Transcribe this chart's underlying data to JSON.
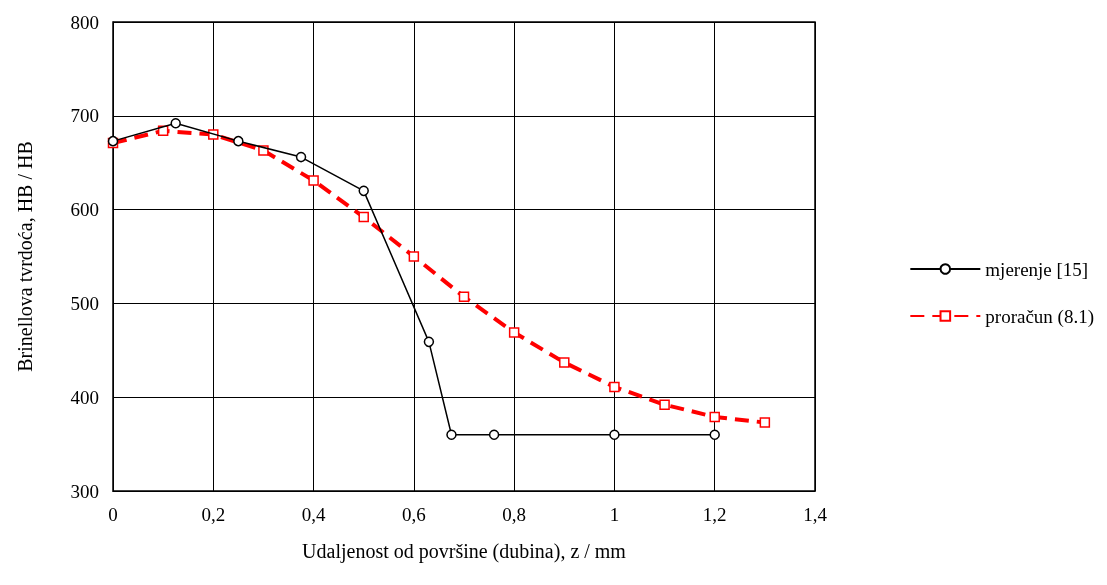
{
  "chart_data": {
    "type": "line",
    "xlabel": "Udaljenost od površine (dubina), z / mm",
    "ylabel": "Brinellova tvrdoća, HB / HB",
    "xlim": [
      0,
      1.4
    ],
    "xticks": [
      0,
      {
        "value": 0.2,
        "label": "0,2"
      },
      {
        "value": 0.4,
        "label": "0,4"
      },
      {
        "value": 0.6,
        "label": "0,6"
      },
      {
        "value": 0.8,
        "label": "0,8"
      },
      1,
      {
        "value": 1.2,
        "label": "1,2"
      },
      {
        "value": 1.4,
        "label": "1,4"
      }
    ],
    "ylim": [
      300,
      800
    ],
    "yticks": [
      300,
      400,
      500,
      600,
      700,
      800
    ],
    "grid": true,
    "legend": "right",
    "series": [
      {
        "name": "mjerenje [15]",
        "color": "#000000",
        "marker": "circle",
        "line_style": "solid",
        "x": [
          0,
          0.125,
          0.25,
          0.375,
          0.5,
          0.63,
          0.675,
          0.76,
          1.0,
          1.2
        ],
        "values": [
          673,
          692,
          673,
          656,
          620,
          459,
          360,
          360,
          360,
          360
        ]
      },
      {
        "name": "proračun (8.1)",
        "color": "#ff0000",
        "marker": "square",
        "line_style": "dashed",
        "x": [
          0,
          0.1,
          0.2,
          0.3,
          0.4,
          0.5,
          0.6,
          0.7,
          0.8,
          0.9,
          1.0,
          1.1,
          1.2,
          1.3
        ],
        "values": [
          671,
          684,
          680,
          663,
          631,
          592,
          550,
          507,
          469,
          437,
          411,
          392,
          379,
          373
        ]
      }
    ]
  }
}
